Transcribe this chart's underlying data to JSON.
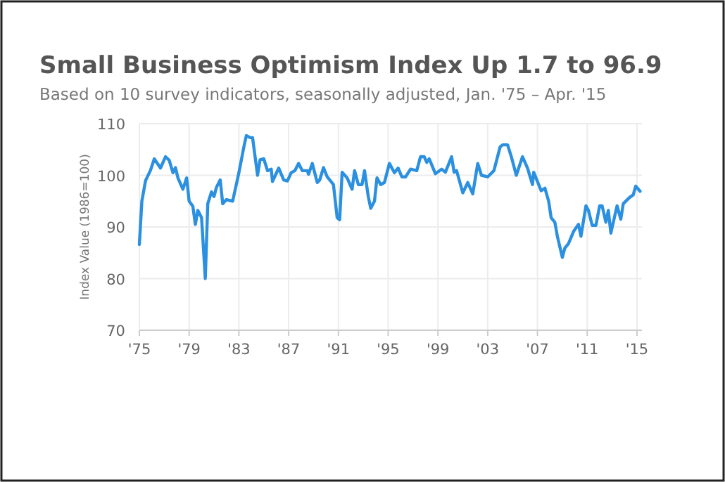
{
  "chart_data": {
    "type": "line",
    "title": "Small Business Optimism Index Up 1.7 to 96.9",
    "subtitle": "Based on 10 survey indicators, seasonally adjusted, Jan. '75 – Apr. '15",
    "ylabel": "Index Value (1986=100)",
    "xlim": [
      1975,
      2015.4
    ],
    "ylim": [
      70,
      110
    ],
    "xticks": [
      {
        "value": 1975,
        "label": "'75"
      },
      {
        "value": 1979,
        "label": "'79"
      },
      {
        "value": 1983,
        "label": "'83"
      },
      {
        "value": 1987,
        "label": "'87"
      },
      {
        "value": 1991,
        "label": "'91"
      },
      {
        "value": 1995,
        "label": "'95"
      },
      {
        "value": 1999,
        "label": "'99"
      },
      {
        "value": 2003,
        "label": "'03"
      },
      {
        "value": 2007,
        "label": "'07"
      },
      {
        "value": 2011,
        "label": "'11"
      },
      {
        "value": 2015,
        "label": "'15"
      }
    ],
    "yticks": [
      70,
      80,
      90,
      100,
      110
    ],
    "grid": true,
    "marker": "none",
    "line_style": "solid",
    "series": [
      {
        "color": "#2b90e0",
        "x": [
          1975.0,
          1975.2,
          1975.5,
          1975.9,
          1976.2,
          1976.7,
          1977.1,
          1977.4,
          1977.7,
          1977.9,
          1978.1,
          1978.5,
          1978.8,
          1979.0,
          1979.3,
          1979.5,
          1979.7,
          1980.0,
          1980.3,
          1980.5,
          1980.8,
          1981.0,
          1981.2,
          1981.5,
          1981.7,
          1982.0,
          1982.5,
          1983.0,
          1983.4,
          1983.6,
          1983.9,
          1984.1,
          1984.5,
          1984.7,
          1985.0,
          1985.3,
          1985.6,
          1985.7,
          1986.2,
          1986.6,
          1986.9,
          1987.2,
          1987.5,
          1987.8,
          1988.1,
          1988.5,
          1988.6,
          1988.9,
          1989.3,
          1989.5,
          1989.8,
          1990.1,
          1990.6,
          1990.9,
          1991.1,
          1991.3,
          1991.7,
          1992.1,
          1992.3,
          1992.6,
          1992.9,
          1993.1,
          1993.4,
          1993.6,
          1993.9,
          1994.1,
          1994.4,
          1994.7,
          1995.1,
          1995.5,
          1995.8,
          1996.1,
          1996.4,
          1996.8,
          1997.3,
          1997.6,
          1997.9,
          1998.1,
          1998.3,
          1998.8,
          1999.3,
          1999.6,
          2000.1,
          2000.3,
          2000.5,
          2001.0,
          2001.4,
          2001.8,
          2002.2,
          2002.5,
          2003.0,
          2003.5,
          2004.0,
          2004.2,
          2004.6,
          2004.9,
          2005.3,
          2005.8,
          2006.2,
          2006.6,
          2006.7,
          2007.3,
          2007.6,
          2007.9,
          2008.1,
          2008.4,
          2008.6,
          2009.0,
          2009.2,
          2009.5,
          2009.9,
          2010.3,
          2010.5,
          2010.9,
          2011.1,
          2011.4,
          2011.7,
          2012.0,
          2012.2,
          2012.5,
          2012.7,
          2012.9,
          2013.4,
          2013.7,
          2013.9,
          2014.4,
          2014.7,
          2014.9,
          2015.25
        ],
        "values": [
          86.6,
          95,
          99,
          101,
          103.2,
          101.4,
          103.6,
          102.9,
          100.5,
          101.5,
          99.5,
          97.3,
          99.5,
          95,
          94,
          90.5,
          93.2,
          91.8,
          80,
          94.5,
          96.8,
          95.9,
          97.7,
          99.1,
          94.5,
          95.3,
          95,
          100.5,
          105.5,
          107.7,
          107.3,
          107.3,
          100,
          103,
          103.2,
          100.9,
          101.2,
          98.8,
          101.4,
          99.1,
          98.9,
          100.5,
          100.9,
          102.3,
          100.9,
          100.9,
          100.2,
          102.3,
          98.6,
          99.1,
          101.5,
          99.7,
          98.2,
          91.8,
          91.4,
          100.6,
          99.5,
          97.3,
          100.9,
          98.2,
          98.2,
          100.9,
          95.9,
          93.6,
          95,
          99.5,
          98.2,
          98.6,
          102.3,
          100.5,
          101.4,
          99.7,
          99.7,
          101.2,
          100.9,
          103.6,
          103.6,
          102.5,
          103.2,
          100.3,
          101.2,
          100.6,
          103.6,
          100.6,
          100.9,
          96.6,
          98.6,
          96.4,
          102.3,
          100,
          99.7,
          100.9,
          105.5,
          105.9,
          105.9,
          103.6,
          100,
          103.6,
          101.4,
          98.2,
          100.6,
          97,
          97.5,
          95,
          91.8,
          90.9,
          88.2,
          84.1,
          85.9,
          86.8,
          89.1,
          90.5,
          88.2,
          94.1,
          93.2,
          90.3,
          90.3,
          94.1,
          94.1,
          90.9,
          93.2,
          88.8,
          94.1,
          91.5,
          94.5,
          95.7,
          96.2,
          97.9,
          96.9
        ]
      }
    ]
  }
}
